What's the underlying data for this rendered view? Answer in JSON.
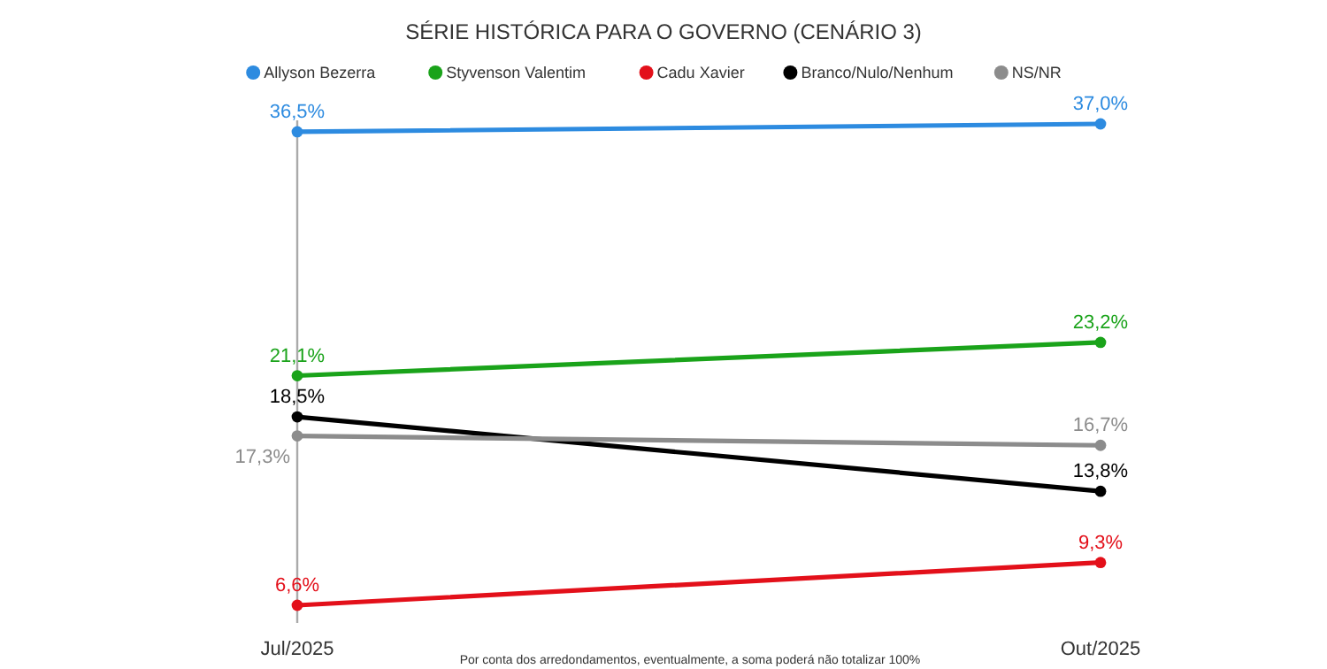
{
  "chart_data": {
    "type": "line",
    "title": "SÉRIE HISTÓRICA PARA O GOVERNO (CENÁRIO 3)",
    "categories": [
      "Jul/2025",
      "Out/2025"
    ],
    "legend": "top",
    "marker": "circle",
    "line_style": "solid",
    "annotations": [
      "Por conta dos arredondamentos, eventualmente, a soma poderá não totalizar 100%"
    ],
    "series": [
      {
        "name": "Allyson Bezerra",
        "color": "#2d8be0",
        "values": [
          36.5,
          37.0
        ],
        "value_labels": [
          "36,5%",
          "37,0%"
        ]
      },
      {
        "name": "Styvenson Valentim",
        "color": "#1aa31a",
        "values": [
          21.1,
          23.2
        ],
        "value_labels": [
          "21,1%",
          "23,2%"
        ]
      },
      {
        "name": "Cadu Xavier",
        "color": "#e3101a",
        "values": [
          6.6,
          9.3
        ],
        "value_labels": [
          "6,6%",
          "9,3%"
        ]
      },
      {
        "name": "Branco/Nulo/Nenhum",
        "color": "#000000",
        "values": [
          18.5,
          13.8
        ],
        "value_labels": [
          "18,5%",
          "13,8%"
        ]
      },
      {
        "name": "NS/NR",
        "color": "#8c8c8c",
        "values": [
          17.3,
          16.7
        ],
        "value_labels": [
          "17,3%",
          "16,7%"
        ]
      }
    ]
  }
}
